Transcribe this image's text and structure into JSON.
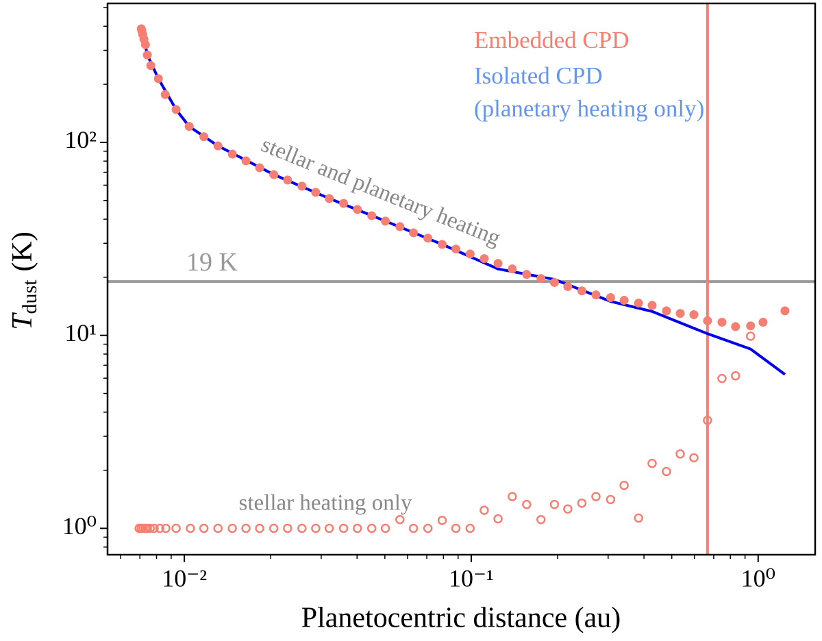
{
  "chart_data": {
    "type": "scatter",
    "xlabel": "Planetocentric distance (au)",
    "ylabel": {
      "symbol": "T",
      "subscript": "dust",
      "unit": "(K)"
    },
    "log_x": true,
    "log_y": true,
    "xlim": [
      0.0054,
      1.58
    ],
    "ylim": [
      0.73,
      525
    ],
    "xticks": [
      {
        "value": 0.01,
        "label": "10⁻²"
      },
      {
        "value": 0.1,
        "label": "10⁻¹"
      },
      {
        "value": 1,
        "label": "10⁰"
      }
    ],
    "yticks": [
      {
        "value": 1,
        "label": "10⁰"
      },
      {
        "value": 10,
        "label": "10¹"
      },
      {
        "value": 100,
        "label": "10²"
      }
    ],
    "xminorticks": [
      0.006,
      0.007,
      0.008,
      0.009,
      0.02,
      0.03,
      0.04,
      0.05,
      0.06,
      0.07,
      0.08,
      0.09,
      0.2,
      0.3,
      0.4,
      0.5,
      0.6,
      0.7,
      0.8,
      0.9
    ],
    "yminorticks": [
      0.8,
      0.9,
      2,
      3,
      4,
      5,
      6,
      7,
      8,
      9,
      20,
      30,
      40,
      50,
      60,
      70,
      80,
      90,
      200,
      300,
      400,
      500
    ],
    "series": [
      {
        "name": "Embedded CPD",
        "color": "#f47f72",
        "marker": "filled",
        "x": [
          0.00708,
          0.00711,
          0.00716,
          0.00723,
          0.00732,
          0.00743,
          0.00764,
          0.00812,
          0.00858,
          0.00936,
          0.0104,
          0.0117,
          0.0131,
          0.0147,
          0.0164,
          0.0183,
          0.0205,
          0.0229,
          0.0257,
          0.0287,
          0.032,
          0.0359,
          0.0401,
          0.045,
          0.0502,
          0.0564,
          0.0629,
          0.0706,
          0.0792,
          0.0884,
          0.0991,
          0.111,
          0.124,
          0.139,
          0.156,
          0.175,
          0.195,
          0.217,
          0.243,
          0.272,
          0.306,
          0.341,
          0.383,
          0.427,
          0.479,
          0.535,
          0.597,
          0.666,
          0.748,
          0.834,
          0.941,
          1.04,
          1.24
        ],
        "values": [
          388,
          378,
          363,
          343,
          321,
          284,
          250,
          214,
          177,
          148,
          121,
          107,
          95.9,
          87.0,
          80.2,
          73.9,
          68.1,
          63.8,
          59.3,
          55.1,
          51.2,
          48.3,
          44.9,
          41.7,
          39.1,
          36.6,
          34.0,
          31.9,
          29.6,
          28.0,
          26.4,
          25.0,
          23.6,
          22.1,
          20.7,
          19.7,
          18.8,
          17.9,
          17.0,
          16.2,
          15.7,
          15.2,
          14.7,
          14.3,
          13.4,
          13.0,
          12.8,
          11.9,
          11.7,
          11.1,
          11.2,
          11.7,
          13.4
        ]
      },
      {
        "name": "Isolated CPD",
        "legend_note": "(planetary heating only)",
        "color": "#0000ee",
        "legend_color": "#6495ed",
        "marker": "line",
        "x": [
          0.00708,
          0.00723,
          0.00743,
          0.00812,
          0.00936,
          0.0104,
          0.0131,
          0.0205,
          0.032,
          0.0502,
          0.0792,
          0.124,
          0.195,
          0.306,
          0.427,
          0.666,
          0.941,
          1.24
        ],
        "values": [
          388,
          343,
          284,
          214,
          148,
          121,
          95.9,
          68.1,
          51.2,
          39.1,
          29.6,
          22.1,
          19.5,
          15.0,
          13.3,
          10.2,
          8.5,
          6.27
        ]
      },
      {
        "color": "#f47f72",
        "marker": "open",
        "x": [
          0.00696,
          0.00708,
          0.00719,
          0.00732,
          0.00743,
          0.0076,
          0.00785,
          0.00821,
          0.00862,
          0.00936,
          0.0105,
          0.0117,
          0.0131,
          0.0147,
          0.0164,
          0.0183,
          0.0205,
          0.0229,
          0.0257,
          0.0287,
          0.032,
          0.0359,
          0.0401,
          0.045,
          0.0502,
          0.0564,
          0.0629,
          0.0706,
          0.0792,
          0.0884,
          0.0991,
          0.111,
          0.124,
          0.139,
          0.156,
          0.175,
          0.195,
          0.217,
          0.243,
          0.272,
          0.306,
          0.341,
          0.383,
          0.427,
          0.479,
          0.535,
          0.597,
          0.666,
          0.748,
          0.834,
          0.941
        ],
        "values": [
          1,
          1,
          1,
          1,
          1,
          1,
          1,
          1,
          1,
          1,
          1,
          1,
          1,
          1,
          1,
          1,
          1,
          1,
          1,
          1,
          1,
          1,
          1,
          1,
          1,
          1.11,
          1,
          1,
          1.1,
          1,
          1,
          1.24,
          1.12,
          1.46,
          1.33,
          1.11,
          1.33,
          1.26,
          1.35,
          1.46,
          1.41,
          1.67,
          1.13,
          2.17,
          1.97,
          2.43,
          2.32,
          3.63,
          5.98,
          6.17,
          9.9
        ]
      }
    ],
    "hlines": [
      {
        "value": 19,
        "label": "19 K",
        "color": "#999999"
      }
    ],
    "vlines": [
      {
        "value": 0.666,
        "color": "#f47f72"
      }
    ],
    "annotations": [
      {
        "text": "stellar and planetary heating",
        "color": "#888888"
      },
      {
        "text": "stellar heating only",
        "color": "#888888"
      }
    ]
  }
}
